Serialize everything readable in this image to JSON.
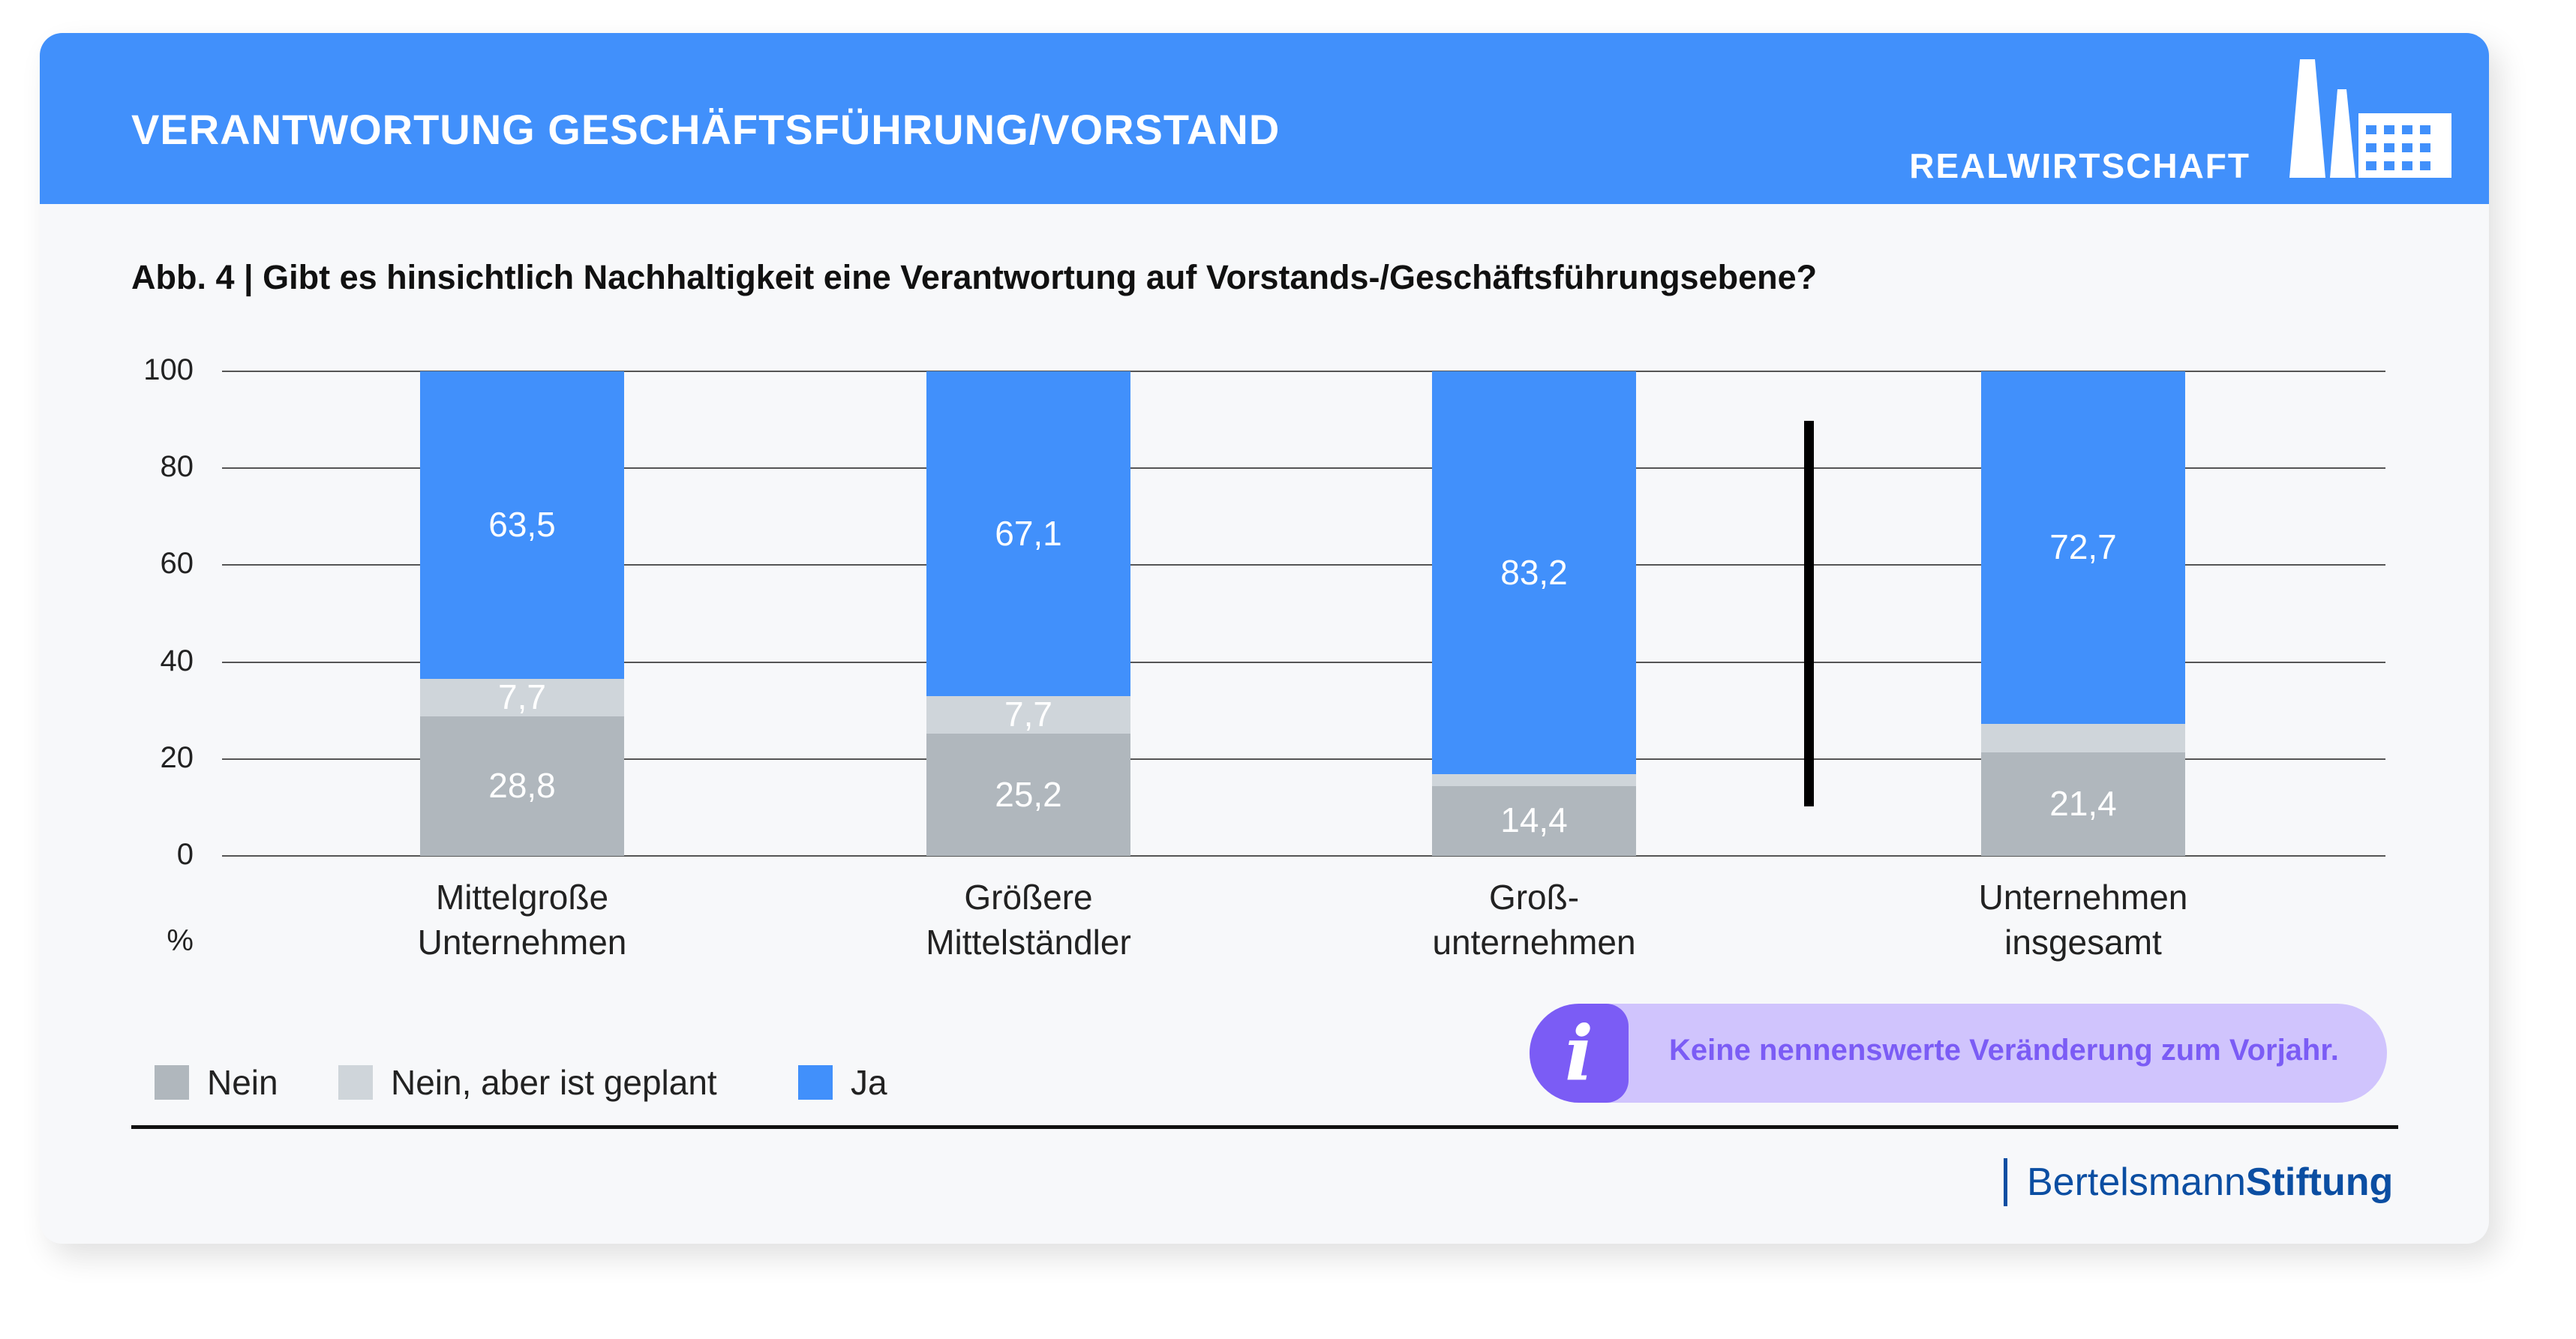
{
  "header": {
    "title": "VERANTWORTUNG GESCHÄFTSFÜHRUNG/VORSTAND",
    "category": "REALWIRTSCHAFT",
    "icon": "factory-icon"
  },
  "subtitle": "Abb. 4  |  Gibt es hinsichtlich Nachhaltigkeit eine Verantwortung auf Vorstands-/Geschäftsführungsebene?",
  "chart_data": {
    "type": "bar",
    "stacked": true,
    "title": "Gibt es hinsichtlich Nachhaltigkeit eine Verantwortung auf Vorstands-/Geschäftsführungsebene?",
    "ylabel": "%",
    "ylim": [
      0,
      100
    ],
    "yticks": [
      "0",
      "20",
      "40",
      "60",
      "80",
      "100"
    ],
    "grid": true,
    "categories": [
      [
        "Mittelgroße",
        "Unternehmen"
      ],
      [
        "Größere",
        "Mittelständler"
      ],
      [
        "Groß-",
        "unternehmen"
      ],
      [
        "Unternehmen",
        "insgesamt"
      ]
    ],
    "series": [
      {
        "name": "Nein",
        "color": "#b0b7bd",
        "values": [
          28.8,
          25.2,
          14.4,
          21.4
        ],
        "labels": [
          "28,8",
          "25,2",
          "14,4",
          "21,4"
        ]
      },
      {
        "name": "Nein, aber ist geplant",
        "color": "#cfd5da",
        "values": [
          7.7,
          7.7,
          2.4,
          5.9
        ],
        "labels": [
          "7,7",
          "7,7",
          null,
          null
        ]
      },
      {
        "name": "Ja",
        "color": "#4190fb",
        "values": [
          63.5,
          67.1,
          83.2,
          72.7
        ],
        "labels": [
          "63,5",
          "67,1",
          "83,2",
          "72,7"
        ]
      }
    ],
    "legend_position": "bottom-left"
  },
  "info": {
    "icon": "info-icon",
    "symbol": "i",
    "text": "Keine nennenswerte Veränderung zum Vorjahr."
  },
  "footer": {
    "logo_part1": "Bertelsmann",
    "logo_part2": "Stiftung"
  }
}
